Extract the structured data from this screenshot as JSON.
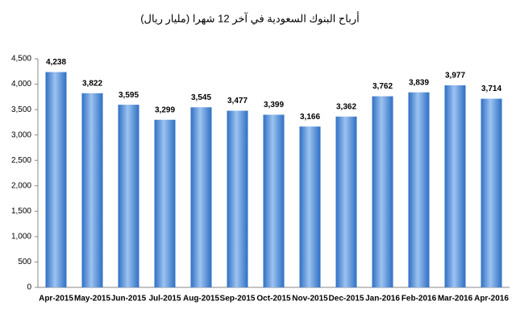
{
  "chart_data": {
    "type": "bar",
    "title": "أرباح البنوك السعودية في آخر 12 شهرا (مليار ريال)",
    "categories": [
      "Apr-2015",
      "May-2015",
      "Jun-2015",
      "Jul-2015",
      "Aug-2015",
      "Sep-2015",
      "Oct-2015",
      "Nov-2015",
      "Dec-2015",
      "Jan-2016",
      "Feb-2016",
      "Mar-2016",
      "Apr-2016"
    ],
    "values": [
      4238,
      3822,
      3595,
      3299,
      3545,
      3477,
      3399,
      3166,
      3362,
      3762,
      3839,
      3977,
      3714
    ],
    "value_labels": [
      "4,238",
      "3,822",
      "3,595",
      "3,299",
      "3,545",
      "3,477",
      "3,399",
      "3,166",
      "3,362",
      "3,762",
      "3,839",
      "3,977",
      "3,714"
    ],
    "color": "#2f6fc4",
    "ylim": [
      0,
      4500
    ],
    "yticks": [
      0,
      500,
      {
        "value": 1000,
        "label": "1,000"
      },
      {
        "value": 1500,
        "label": "1,500"
      },
      {
        "value": 2000,
        "label": "2,000"
      },
      {
        "value": 2500,
        "label": "2,500"
      },
      {
        "value": 3000,
        "label": "3,000"
      },
      {
        "value": 3500,
        "label": "3,500"
      },
      {
        "value": 4000,
        "label": "4,000"
      },
      {
        "value": 4500,
        "label": "4,500"
      }
    ],
    "grid": false
  }
}
